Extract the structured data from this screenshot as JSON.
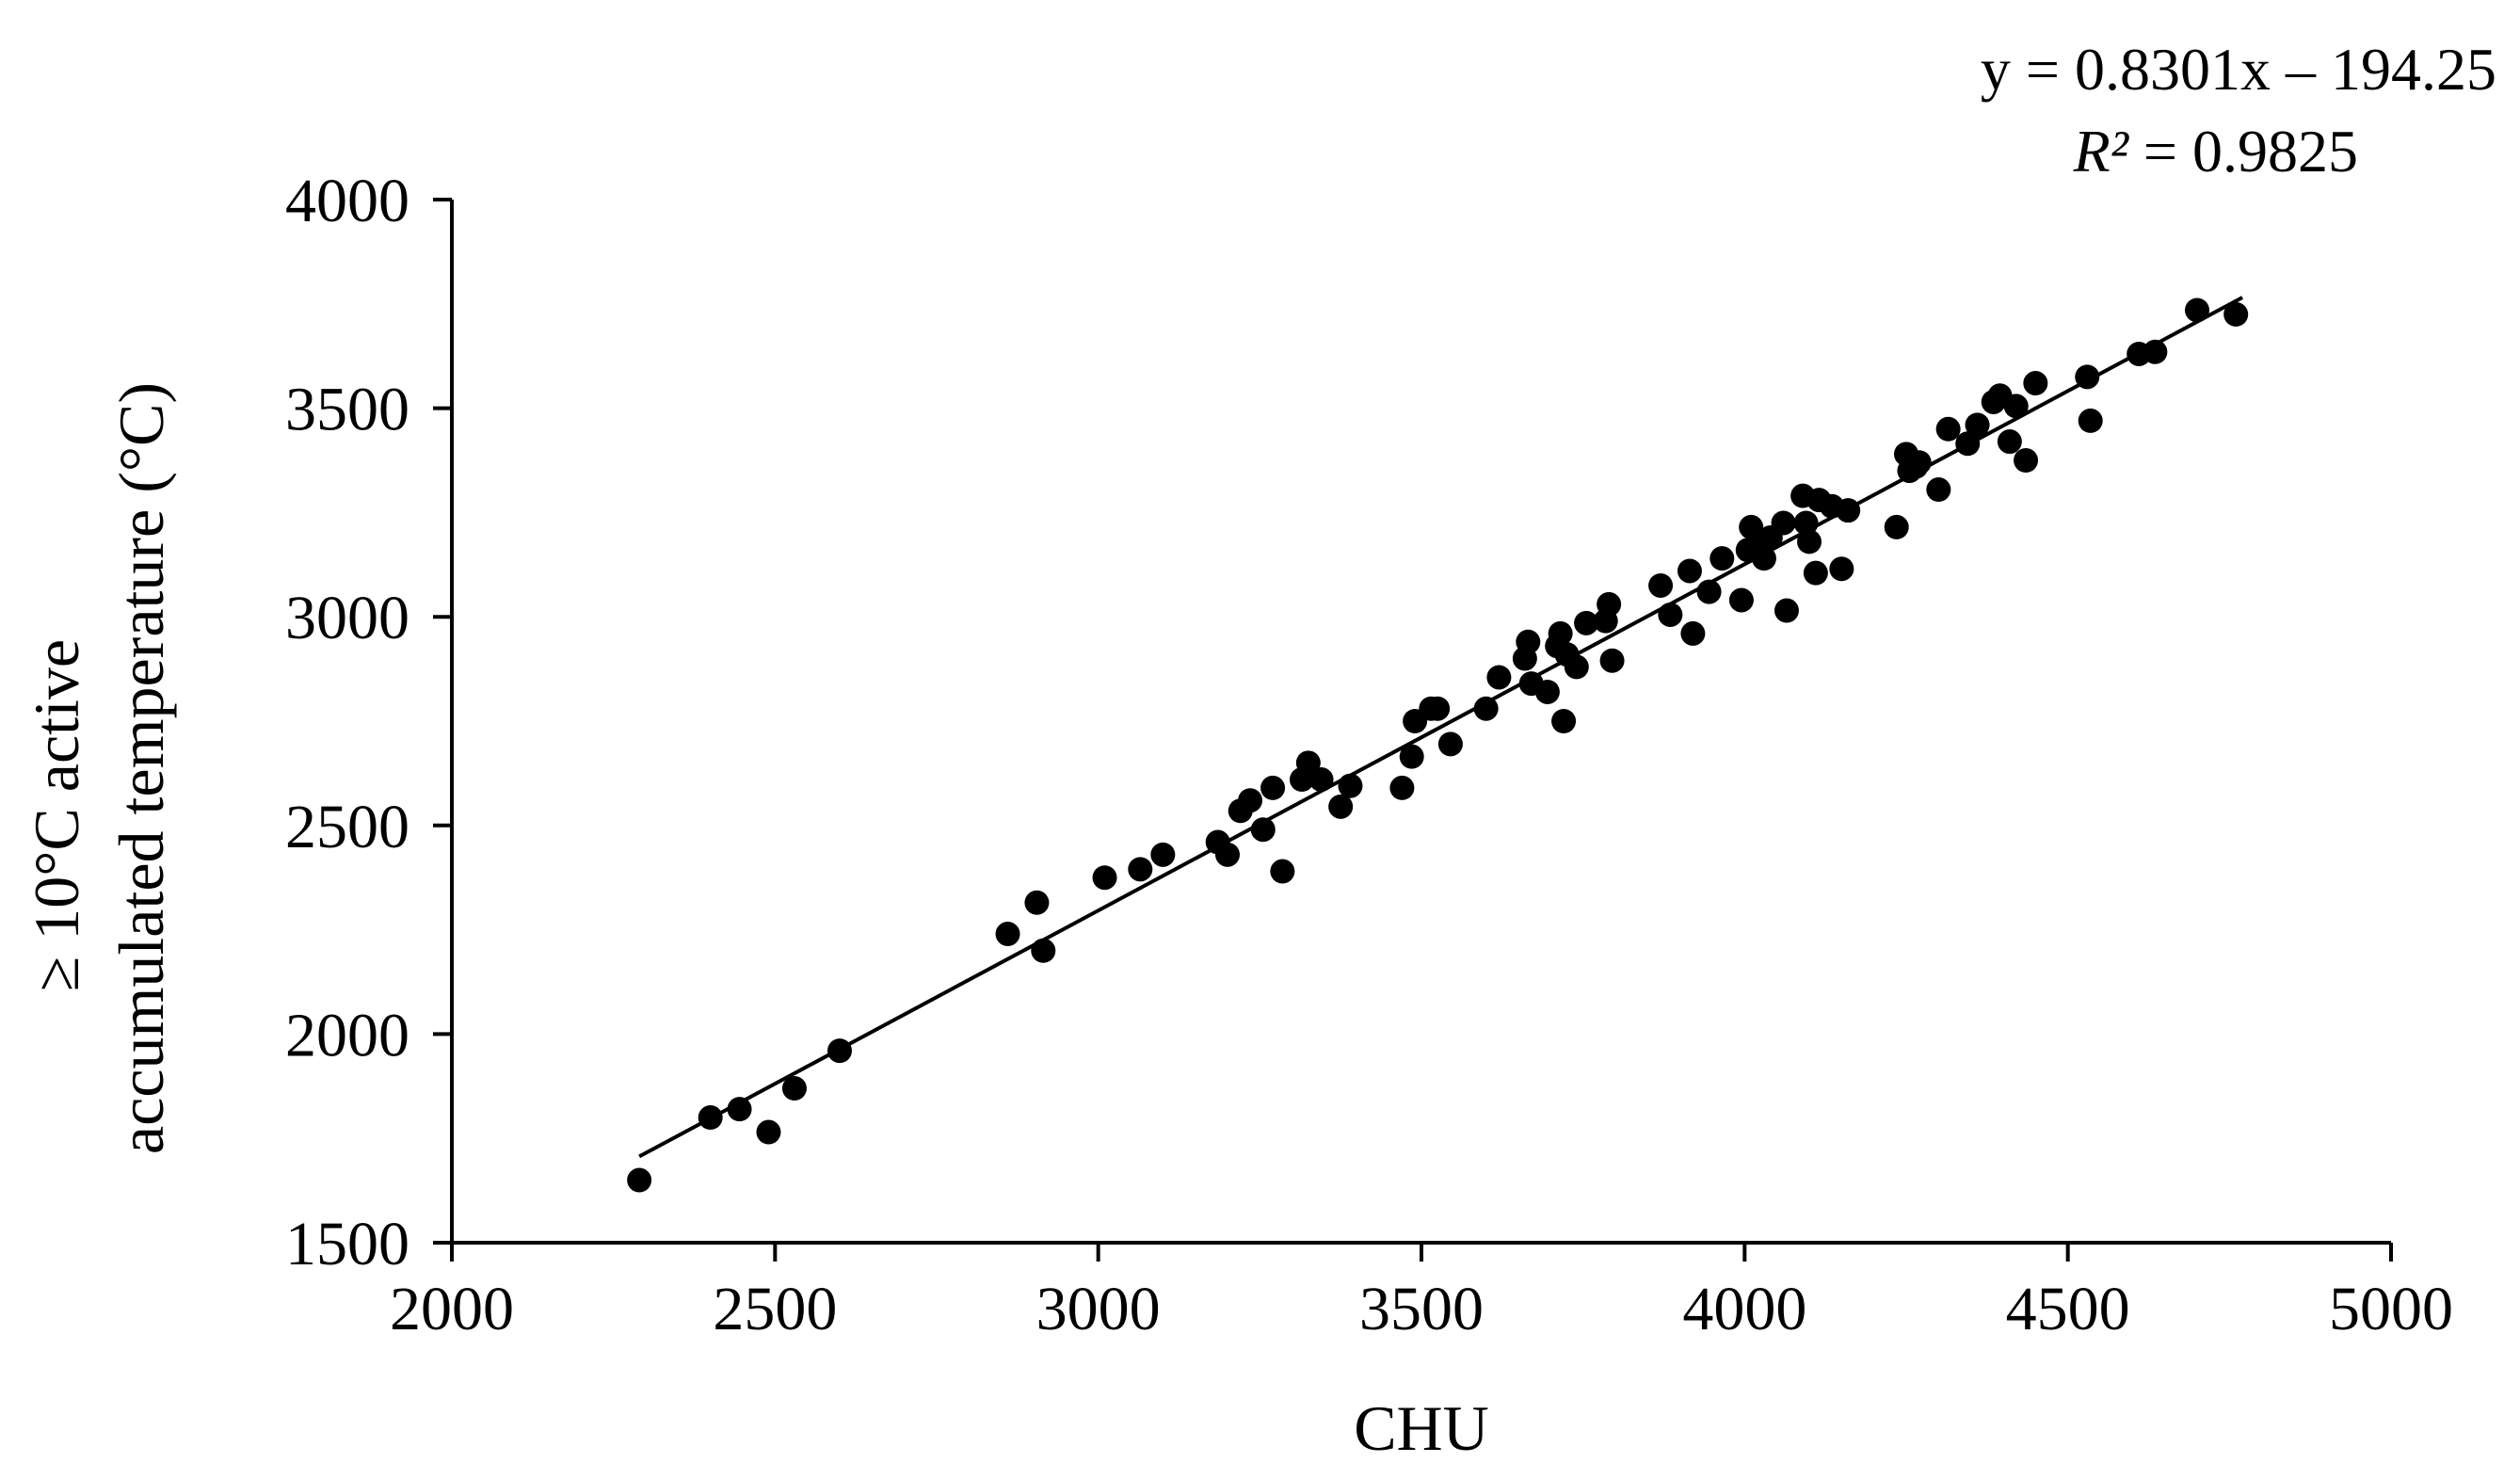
{
  "chart_data": {
    "type": "scatter",
    "xlabel": "CHU",
    "ylabel_lines": [
      "≥ 10°C active",
      "accumulated temperature (°C)"
    ],
    "xlim": [
      2000,
      5000
    ],
    "ylim": [
      1500,
      4000
    ],
    "xticks": [
      2000,
      2500,
      3000,
      3500,
      4000,
      4500,
      5000
    ],
    "yticks": [
      1500,
      2000,
      2500,
      3000,
      3500,
      4000
    ],
    "grid": false,
    "legend": "none",
    "equation": {
      "line1": "y = 0.8301x – 194.25",
      "r2_symbol": "R²",
      "r2_rest": " = 0.9825"
    },
    "trendline": {
      "slope": 0.8301,
      "intercept": -194.25,
      "x_range": [
        2290,
        4770
      ]
    },
    "marker_color": "#000000",
    "points": [
      [
        2290,
        1650
      ],
      [
        2400,
        1800
      ],
      [
        2445,
        1820
      ],
      [
        2490,
        1765
      ],
      [
        2530,
        1870
      ],
      [
        2600,
        1960
      ],
      [
        2860,
        2240
      ],
      [
        2905,
        2315
      ],
      [
        2915,
        2200
      ],
      [
        3010,
        2375
      ],
      [
        3065,
        2395
      ],
      [
        3100,
        2430
      ],
      [
        3185,
        2460
      ],
      [
        3200,
        2430
      ],
      [
        3220,
        2535
      ],
      [
        3235,
        2560
      ],
      [
        3255,
        2490
      ],
      [
        3270,
        2590
      ],
      [
        3285,
        2390
      ],
      [
        3315,
        2610
      ],
      [
        3325,
        2650
      ],
      [
        3345,
        2610
      ],
      [
        3375,
        2545
      ],
      [
        3390,
        2595
      ],
      [
        3470,
        2590
      ],
      [
        3485,
        2665
      ],
      [
        3490,
        2750
      ],
      [
        3515,
        2780
      ],
      [
        3525,
        2780
      ],
      [
        3545,
        2695
      ],
      [
        3600,
        2780
      ],
      [
        3620,
        2855
      ],
      [
        3660,
        2900
      ],
      [
        3665,
        2940
      ],
      [
        3670,
        2840
      ],
      [
        3695,
        2820
      ],
      [
        3710,
        2930
      ],
      [
        3715,
        2960
      ],
      [
        3720,
        2750
      ],
      [
        3725,
        2910
      ],
      [
        3740,
        2880
      ],
      [
        3755,
        2985
      ],
      [
        3785,
        2990
      ],
      [
        3790,
        3030
      ],
      [
        3795,
        2895
      ],
      [
        3870,
        3075
      ],
      [
        3885,
        3005
      ],
      [
        3915,
        3110
      ],
      [
        3920,
        2960
      ],
      [
        3945,
        3060
      ],
      [
        3965,
        3140
      ],
      [
        3995,
        3040
      ],
      [
        4005,
        3160
      ],
      [
        4010,
        3215
      ],
      [
        4025,
        3170
      ],
      [
        4030,
        3140
      ],
      [
        4040,
        3190
      ],
      [
        4060,
        3225
      ],
      [
        4065,
        3015
      ],
      [
        4090,
        3290
      ],
      [
        4095,
        3225
      ],
      [
        4100,
        3180
      ],
      [
        4110,
        3105
      ],
      [
        4115,
        3280
      ],
      [
        4135,
        3265
      ],
      [
        4150,
        3115
      ],
      [
        4160,
        3255
      ],
      [
        4235,
        3215
      ],
      [
        4250,
        3390
      ],
      [
        4255,
        3350
      ],
      [
        4265,
        3360
      ],
      [
        4270,
        3370
      ],
      [
        4300,
        3305
      ],
      [
        4315,
        3450
      ],
      [
        4345,
        3415
      ],
      [
        4360,
        3460
      ],
      [
        4385,
        3515
      ],
      [
        4395,
        3530
      ],
      [
        4410,
        3420
      ],
      [
        4420,
        3505
      ],
      [
        4435,
        3375
      ],
      [
        4450,
        3560
      ],
      [
        4530,
        3575
      ],
      [
        4535,
        3470
      ],
      [
        4610,
        3630
      ],
      [
        4635,
        3635
      ],
      [
        4700,
        3735
      ],
      [
        4760,
        3725
      ]
    ]
  }
}
